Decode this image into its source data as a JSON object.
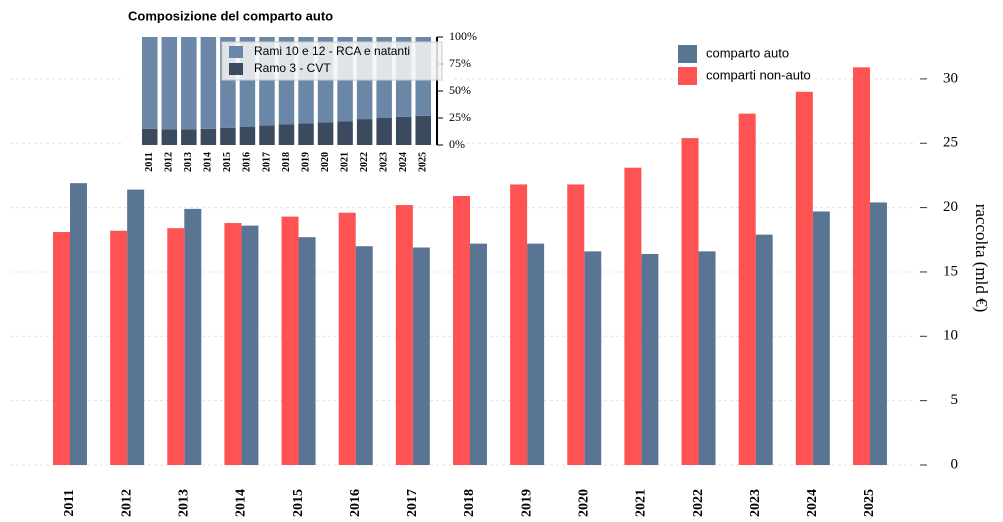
{
  "chart_data": [
    {
      "type": "bar",
      "y_label": "raccolta (mld €)",
      "categories": [
        "2011",
        "2012",
        "2013",
        "2014",
        "2015",
        "2016",
        "2017",
        "2018",
        "2019",
        "2020",
        "2021",
        "2022",
        "2023",
        "2024",
        "2025"
      ],
      "series": [
        {
          "name": "comparto auto",
          "color": "#5a7593",
          "values": [
            21.9,
            21.4,
            19.9,
            18.6,
            17.7,
            17.0,
            16.9,
            17.2,
            17.2,
            16.6,
            16.4,
            16.6,
            17.9,
            19.7,
            20.4
          ]
        },
        {
          "name": "comparti non-auto",
          "color": "#ff5252",
          "values": [
            18.1,
            18.2,
            18.4,
            18.8,
            19.3,
            19.6,
            20.2,
            20.9,
            21.8,
            21.8,
            23.1,
            25.4,
            27.3,
            29.0,
            30.9
          ]
        }
      ],
      "ylim": [
        0,
        33
      ],
      "yticks": [
        0,
        5,
        10,
        15,
        20,
        25,
        30
      ],
      "grid": true,
      "legend": "upper right"
    },
    {
      "type": "stacked_bar",
      "title": "Composizione del comparto auto",
      "categories": [
        "2011",
        "2012",
        "2013",
        "2014",
        "2015",
        "2016",
        "2017",
        "2018",
        "2019",
        "2020",
        "2021",
        "2022",
        "2023",
        "2024",
        "2025"
      ],
      "series": [
        {
          "name": "Ramo 3 - CVT",
          "color": "#3b4a5c",
          "values": [
            15,
            14.5,
            14.5,
            15,
            16,
            17,
            18,
            19,
            20,
            21,
            22,
            24,
            25,
            26,
            27
          ]
        },
        {
          "name": "Rami 10 e 12 - RCA e natanti",
          "color": "#6a87a8",
          "values": [
            85,
            85.5,
            85.5,
            85,
            84,
            83,
            82,
            81,
            80,
            79,
            78,
            76,
            75,
            74,
            73
          ]
        }
      ],
      "ylim": [
        0,
        100
      ],
      "yticks": [
        {
          "value": 0,
          "label": "0%"
        },
        {
          "value": 25,
          "label": "25%"
        },
        {
          "value": 50,
          "label": "50%"
        },
        {
          "value": 75,
          "label": "75%"
        },
        {
          "value": 100,
          "label": "100%"
        }
      ]
    }
  ]
}
